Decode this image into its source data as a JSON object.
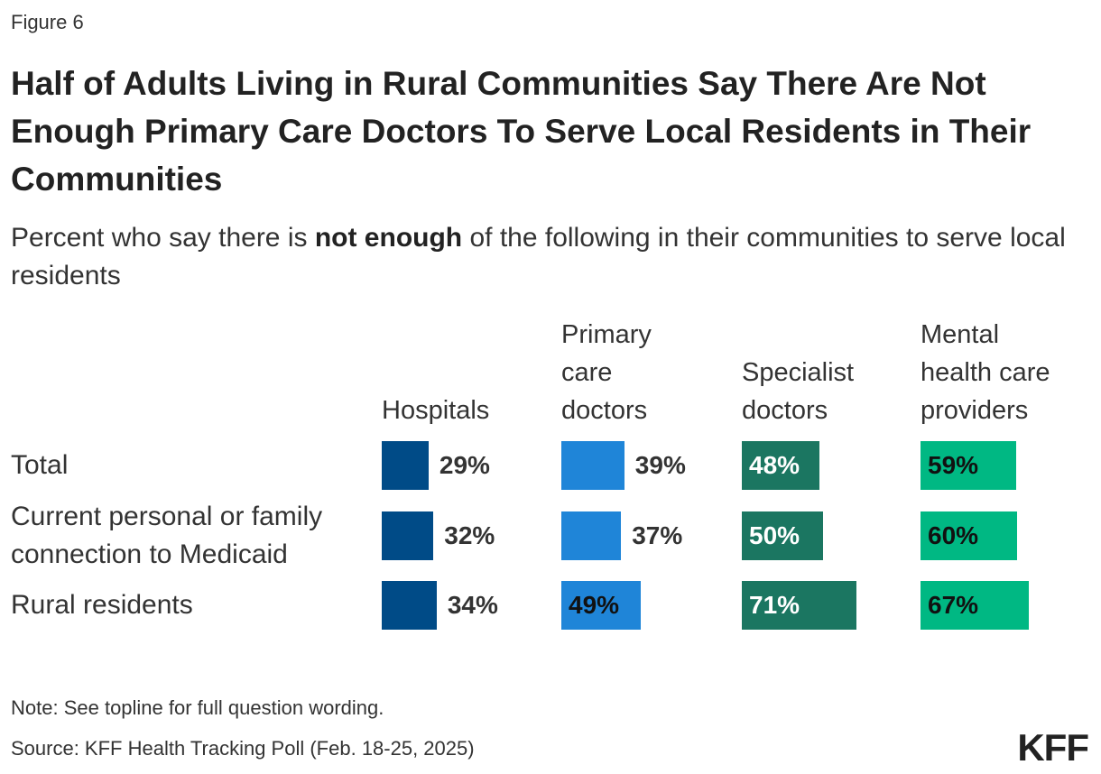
{
  "figure_label": "Figure 6",
  "title": "Half of Adults Living in Rural Communities Say There Are Not Enough Primary Care Doctors To Serve Local Residents in Their Communities",
  "subtitle": {
    "before": "Percent who say there is ",
    "bold": "not enough",
    "after": " of the following in their communities to serve local residents"
  },
  "note": "Note: See topline for full question wording.",
  "source": "Source: KFF Health Tracking Poll (Feb. 18-25, 2025)",
  "logo": "KFF",
  "chart_data": {
    "type": "bar",
    "layout": "small-multiples-horizontal",
    "categories": [
      "Total",
      "Current personal or family connection to Medicaid",
      "Rural residents"
    ],
    "category_lines": [
      [
        "Total"
      ],
      [
        "Current personal or family",
        "connection to Medicaid"
      ],
      [
        "Rural residents"
      ]
    ],
    "series": [
      {
        "name": "Hospitals",
        "name_lines": [
          "Hospitals"
        ],
        "color": "#004b87",
        "values": [
          29,
          32,
          34
        ],
        "labels": [
          "29%",
          "32%",
          "34%"
        ]
      },
      {
        "name": "Primary care doctors",
        "name_lines": [
          "Primary",
          "care",
          "doctors"
        ],
        "color": "#1f85d8",
        "values": [
          39,
          37,
          49
        ],
        "labels": [
          "39%",
          "37%",
          "49%"
        ]
      },
      {
        "name": "Specialist doctors",
        "name_lines": [
          "Specialist",
          "doctors"
        ],
        "color": "#1b7661",
        "values": [
          48,
          50,
          71
        ],
        "labels": [
          "48%",
          "50%",
          "71%"
        ]
      },
      {
        "name": "Mental health care providers",
        "name_lines": [
          "Mental",
          "health care",
          "providers"
        ],
        "color": "#00b883",
        "values": [
          59,
          60,
          67
        ],
        "labels": [
          "59%",
          "60%",
          "67%"
        ]
      }
    ],
    "xlim": [
      0,
      100
    ]
  }
}
